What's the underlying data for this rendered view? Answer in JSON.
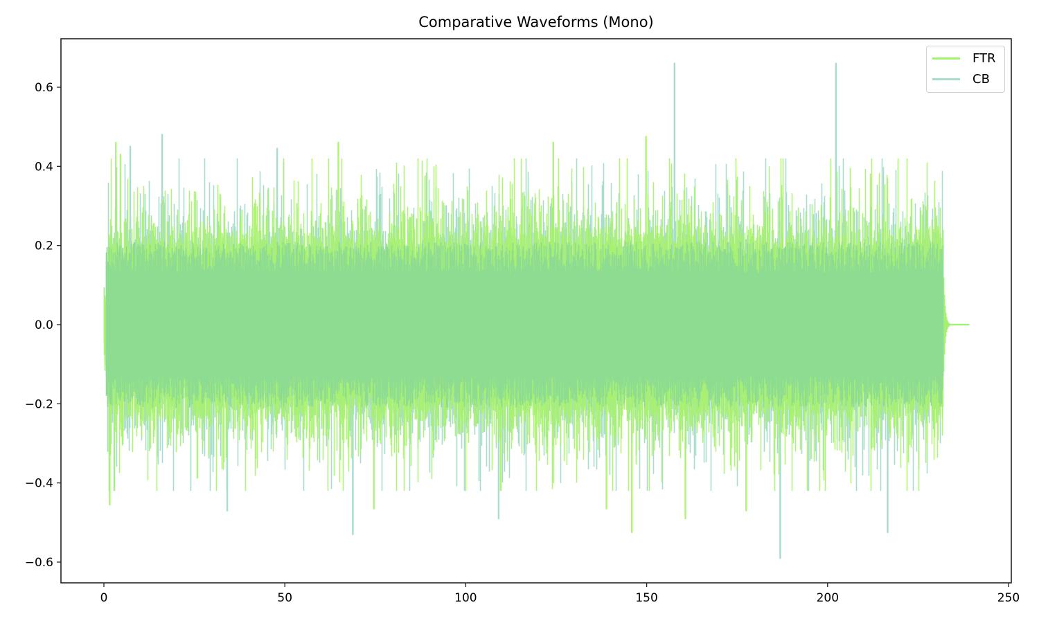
{
  "chart_data": {
    "type": "line",
    "title": "Comparative Waveforms (Mono)",
    "xlabel": "",
    "ylabel": "",
    "xlim": [
      -12,
      251
    ],
    "ylim": [
      -0.65,
      0.72
    ],
    "x_ticks": [
      0,
      50,
      100,
      150,
      200,
      250
    ],
    "y_ticks": [
      -0.6,
      -0.4,
      -0.2,
      0.0,
      0.2,
      0.4,
      0.6
    ],
    "x_tick_labels": [
      "0",
      "50",
      "100",
      "150",
      "200",
      "250"
    ],
    "y_tick_labels": [
      "−0.6",
      "−0.4",
      "−0.2",
      "0.0",
      "0.2",
      "0.4",
      "0.6"
    ],
    "grid": false,
    "legend_position": "upper right",
    "series": [
      {
        "name": "FTR",
        "color": "#a6f26a",
        "signal_start": 0,
        "signal_end_active": 232,
        "signal_end": 239,
        "typical_envelope": 0.2,
        "max": 0.475,
        "min": -0.525,
        "notable_peaks": [
          [
            3.3,
            0.46
          ],
          [
            4.6,
            0.43
          ],
          [
            64.8,
            0.46
          ],
          [
            124.2,
            0.46
          ],
          [
            149.8,
            0.475
          ],
          [
            145.9,
            -0.525
          ],
          [
            1.6,
            -0.455
          ],
          [
            160.7,
            -0.49
          ],
          [
            74.6,
            -0.465
          ],
          [
            177.5,
            -0.47
          ],
          [
            138.9,
            -0.465
          ]
        ]
      },
      {
        "name": "CB",
        "color": "#a8dccb",
        "signal_start": 0,
        "signal_end_active": 232,
        "signal_end": 239,
        "typical_envelope": 0.2,
        "max": 0.66,
        "min": -0.59,
        "notable_peaks": [
          [
            157.7,
            0.66
          ],
          [
            202.3,
            0.66
          ],
          [
            16.1,
            0.48
          ],
          [
            7.3,
            0.45
          ],
          [
            47.9,
            0.445
          ],
          [
            186.9,
            -0.59
          ],
          [
            68.8,
            -0.53
          ],
          [
            109.1,
            -0.49
          ],
          [
            216.6,
            -0.525
          ],
          [
            34.1,
            -0.47
          ]
        ]
      }
    ],
    "overlap_color": "#8edb92"
  },
  "legend": {
    "items": [
      {
        "label": "FTR",
        "color": "#a6f26a"
      },
      {
        "label": "CB",
        "color": "#a8dccb"
      }
    ]
  }
}
